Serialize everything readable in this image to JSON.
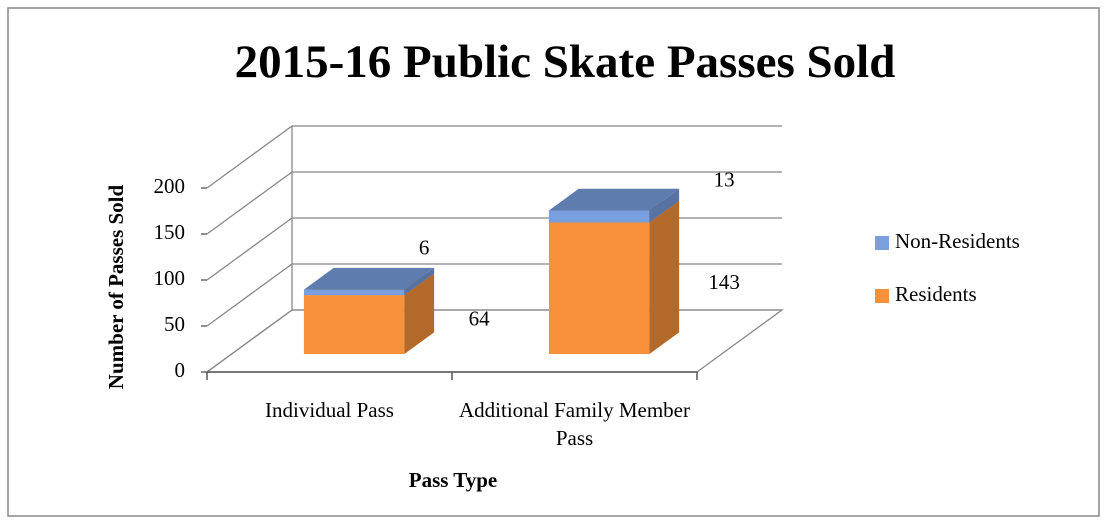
{
  "chart_data": {
    "type": "bar3d_stacked",
    "title": "2015-16 Public Skate Passes Sold",
    "y_label": "Number of Passes Sold",
    "x_label": "Pass Type",
    "categories": [
      "Individual Pass",
      "Additional Family Member Pass"
    ],
    "series": [
      {
        "name": "Residents",
        "color": "#f8923a",
        "values": [
          64,
          143
        ]
      },
      {
        "name": "Non-Residents",
        "color": "#7a9fdf",
        "values": [
          6,
          13
        ]
      }
    ],
    "ylim": [
      0,
      200
    ],
    "yticks": [
      0,
      50,
      100,
      150,
      200
    ],
    "grid": true,
    "legend": "right"
  }
}
